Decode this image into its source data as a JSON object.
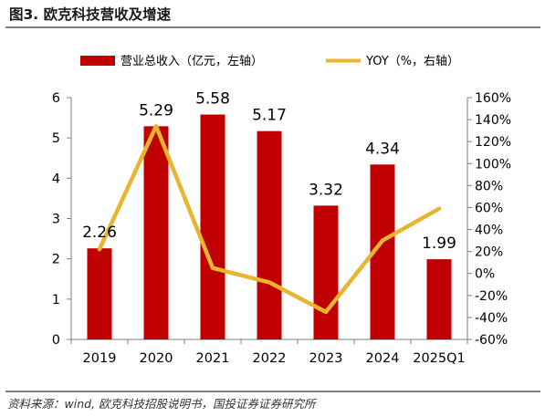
{
  "figure": {
    "title": "图3. 欧克科技营收及增速",
    "source": "资料来源：wind, 欧克科技招股说明书，国投证券证券研究所"
  },
  "colors": {
    "bar": "#c00000",
    "line": "#e8b62e",
    "axis": "#7f7f7f",
    "text": "#000000"
  },
  "chart_data": {
    "type": "bar",
    "categories": [
      "2019",
      "2020",
      "2021",
      "2022",
      "2023",
      "2024",
      "2025Q1"
    ],
    "series": [
      {
        "name": "营业总收入（亿元，左轴）",
        "type": "bar",
        "axis": "left",
        "values": [
          2.26,
          5.29,
          5.58,
          5.17,
          3.32,
          4.34,
          1.99
        ]
      },
      {
        "name": "YOY（%，右轴）",
        "type": "line",
        "axis": "right",
        "values": [
          22,
          134,
          5,
          -8,
          -35,
          30,
          59
        ]
      }
    ],
    "data_labels": [
      "2.26",
      "5.29",
      "5.58",
      "5.17",
      "3.32",
      "4.34",
      "1.99"
    ],
    "y_left": {
      "min": 0,
      "max": 6,
      "ticks": [
        "0",
        "1",
        "2",
        "3",
        "4",
        "5",
        "6"
      ]
    },
    "y_right": {
      "min": -60,
      "max": 160,
      "ticks": [
        "-60%",
        "-40%",
        "-20%",
        "0%",
        "20%",
        "40%",
        "60%",
        "80%",
        "100%",
        "120%",
        "140%",
        "160%"
      ]
    },
    "legend": "top",
    "grid": false
  }
}
